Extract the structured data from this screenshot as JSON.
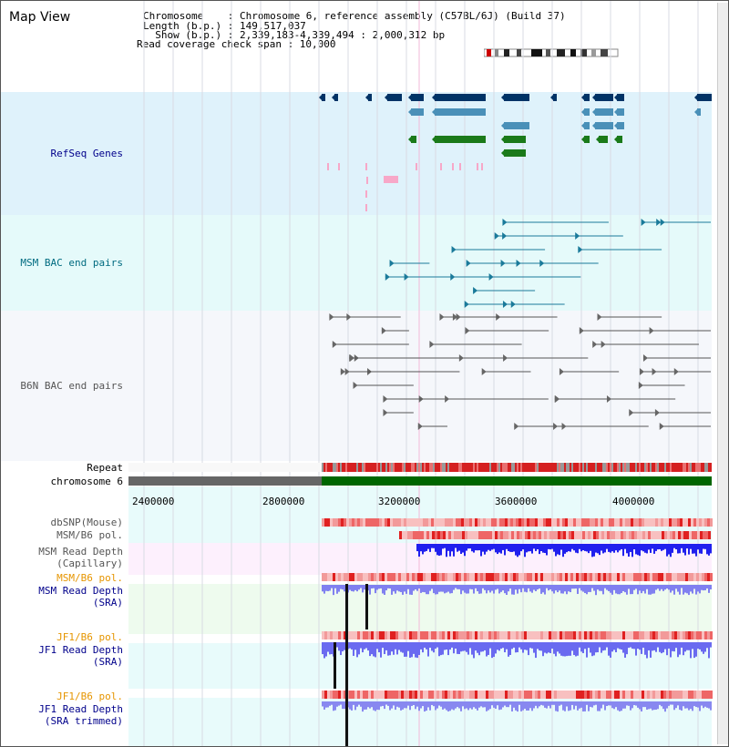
{
  "view_title": "Map View",
  "header": {
    "chromosome_label": "Chromosome    : Chromosome 6, reference assembly (C57BL/6J) (Build 37)",
    "length_label": "Length (b.p.) : 149,517,037",
    "show_label": "  Show (b.p.) : 2,339,183-4,339,494 : 2,000,312 bp",
    "coverage_label": "Read coverage check span : 10,000"
  },
  "tracks": {
    "refseq": "RefSeq Genes",
    "msm_bac": "MSM BAC end pairs",
    "b6n_bac": "B6N BAC end pairs",
    "repeat": "Repeat",
    "chromosome": "chromosome 6",
    "dbsnp": "dbSNP(Mouse)",
    "msm_b6_pol_1": "MSM/B6 pol.",
    "msm_read_depth_cap_1": "MSM Read Depth",
    "msm_read_depth_cap_2": "(Capillary)",
    "msm_b6_pol_2": "MSM/B6 pol.",
    "msm_read_depth_sra_1": "MSM Read Depth",
    "msm_read_depth_sra_2": "(SRA)",
    "jf1_b6_pol_1": "JF1/B6 pol.",
    "jf1_read_depth_sra_1": "JF1 Read Depth",
    "jf1_read_depth_sra_2": "(SRA)",
    "jf1_b6_pol_2": "JF1/B6 pol.",
    "jf1_read_depth_trim_1": "JF1 Read Depth",
    "jf1_read_depth_trim_2": "(SRA trimmed)"
  },
  "axis_ticks": [
    "2400000",
    "2800000",
    "3200000",
    "3600000",
    "4000000"
  ],
  "colors": {
    "refseq_bg": "#dff2fb",
    "msm_bac_bg": "#e5fafa",
    "b6n_bac_bg": "#f5f7fb",
    "depth_cap_bg": "#fdf0fd",
    "depth_sra_bg": "#eefbee",
    "depth_jf1_bg": "#e8fbfb",
    "label_navy": "#00008b",
    "label_teal": "#006b80",
    "label_gray": "#555555",
    "label_orange": "#e69500",
    "chromosome_green": "#006600",
    "chromosome_gray": "#666666"
  }
}
